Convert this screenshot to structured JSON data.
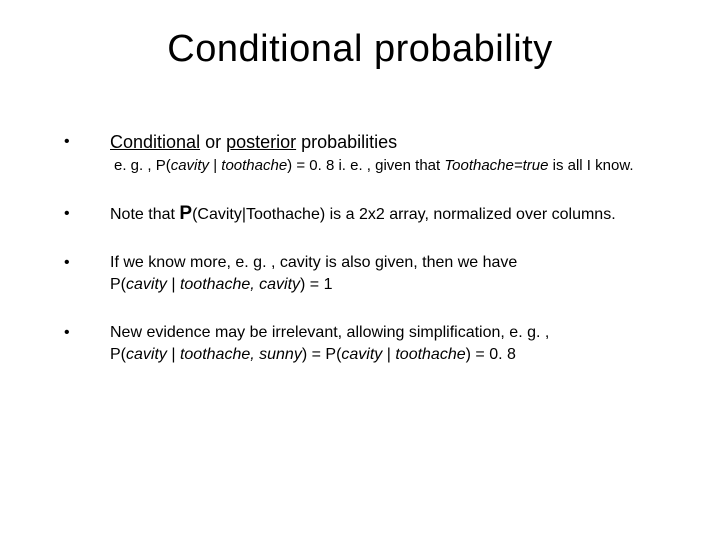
{
  "title": "Conditional probability",
  "bullets": [
    {
      "lead_pre": "",
      "lead_u1": "Conditional",
      "lead_mid": " or ",
      "lead_u2": "posterior",
      "lead_post": " probabilities",
      "sub_pre": "e. g. , P(",
      "sub_i1": "cavity",
      "sub_mid1": " | ",
      "sub_i2": "toothache",
      "sub_mid2": ") = 0. 8 i. e. , given that ",
      "sub_i3": "Toothache=true",
      "sub_post": " is all I know."
    },
    {
      "line_pre": "Note that ",
      "line_bold": "P",
      "line_post": "(Cavity|Toothache) is a 2x2 array, normalized over columns."
    },
    {
      "line1": "If we know more, e. g. , cavity is also given, then we have",
      "l2_pre": "P(",
      "l2_i1": "cavity",
      "l2_mid1": " | ",
      "l2_i2": "toothache, cavity",
      "l2_post": ") = 1"
    },
    {
      "line1": "New evidence may be irrelevant, allowing simplification, e. g. ,",
      "l2_pre": "P(",
      "l2_i1": "cavity",
      "l2_mid1": " | ",
      "l2_i2": "toothache, sunny",
      "l2_mid2": ") = P(",
      "l2_i3": "cavity",
      "l2_mid3": " | ",
      "l2_i4": "toothache",
      "l2_post": ") = 0. 8"
    }
  ]
}
